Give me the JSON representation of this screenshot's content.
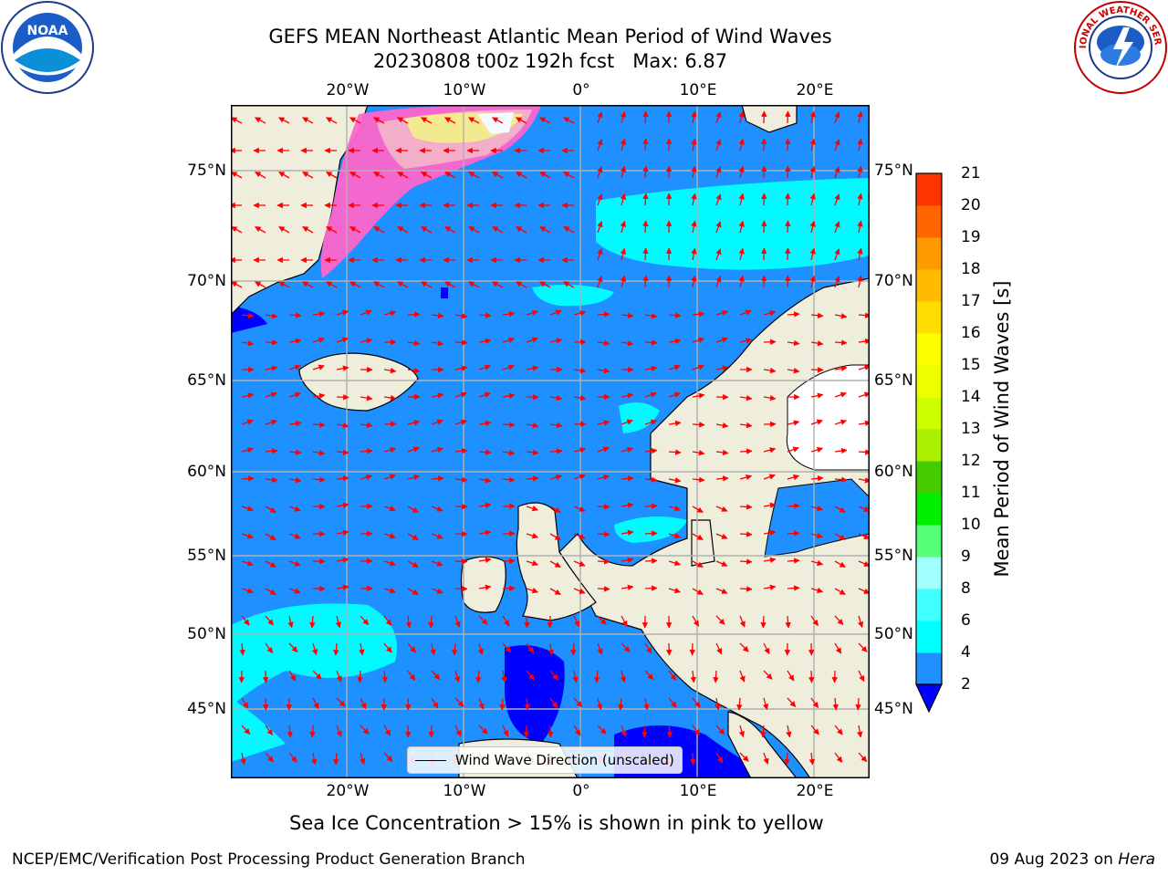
{
  "header": {
    "title_line1": "GEFS MEAN Northeast Atlantic Mean Period of Wind Waves",
    "title_line2": "20230808 t00z 192h fcst   Max: 6.87"
  },
  "logos": {
    "left": "noaa-logo",
    "left_text": "NOAA",
    "right": "nws-logo",
    "right_text": "NATIONAL WEATHER SERVICE"
  },
  "map": {
    "lon_labels_top": [
      "20°W",
      "10°W",
      "0°",
      "10°E",
      "20°E"
    ],
    "lon_labels_bottom": [
      "20°W",
      "10°W",
      "0°",
      "10°E",
      "20°E"
    ],
    "lat_labels": [
      "75°N",
      "70°N",
      "65°N",
      "60°N",
      "55°N",
      "50°N",
      "45°N"
    ],
    "colors": {
      "ocean_base": "#1e90ff",
      "ocean_low": "#0000ff",
      "ocean_mid": "#00ffff",
      "land": "#efeedd",
      "ice_pink": "#ff66cc",
      "ice_yellow": "#ffee88",
      "arrow": "#ff0000",
      "grid": "#b0b0b0"
    }
  },
  "colorbar": {
    "label": "Mean Period of Wind Waves [s]",
    "ticks": [
      "2",
      "4",
      "6",
      "8",
      "9",
      "10",
      "11",
      "12",
      "13",
      "14",
      "15",
      "16",
      "17",
      "18",
      "19",
      "20",
      "21"
    ],
    "colors": [
      "#1e90ff",
      "#00ffff",
      "#40ffff",
      "#a0ffff",
      "#55ff77",
      "#00ee00",
      "#44cc00",
      "#aaee00",
      "#ccff00",
      "#eeff00",
      "#ffff00",
      "#ffdd00",
      "#ffbb00",
      "#ff9900",
      "#ff6600",
      "#ff3300",
      "#ff0000"
    ],
    "extend_color": "#0000ff"
  },
  "legend": {
    "label": "Wind Wave Direction (unscaled)"
  },
  "footnote": "Sea Ice Concentration > 15% is shown in pink to yellow",
  "credits": {
    "left": "NCEP/EMC/Verification Post Processing Product Generation Branch",
    "right_date": "09 Aug 2023 on ",
    "right_host": "Hera"
  }
}
